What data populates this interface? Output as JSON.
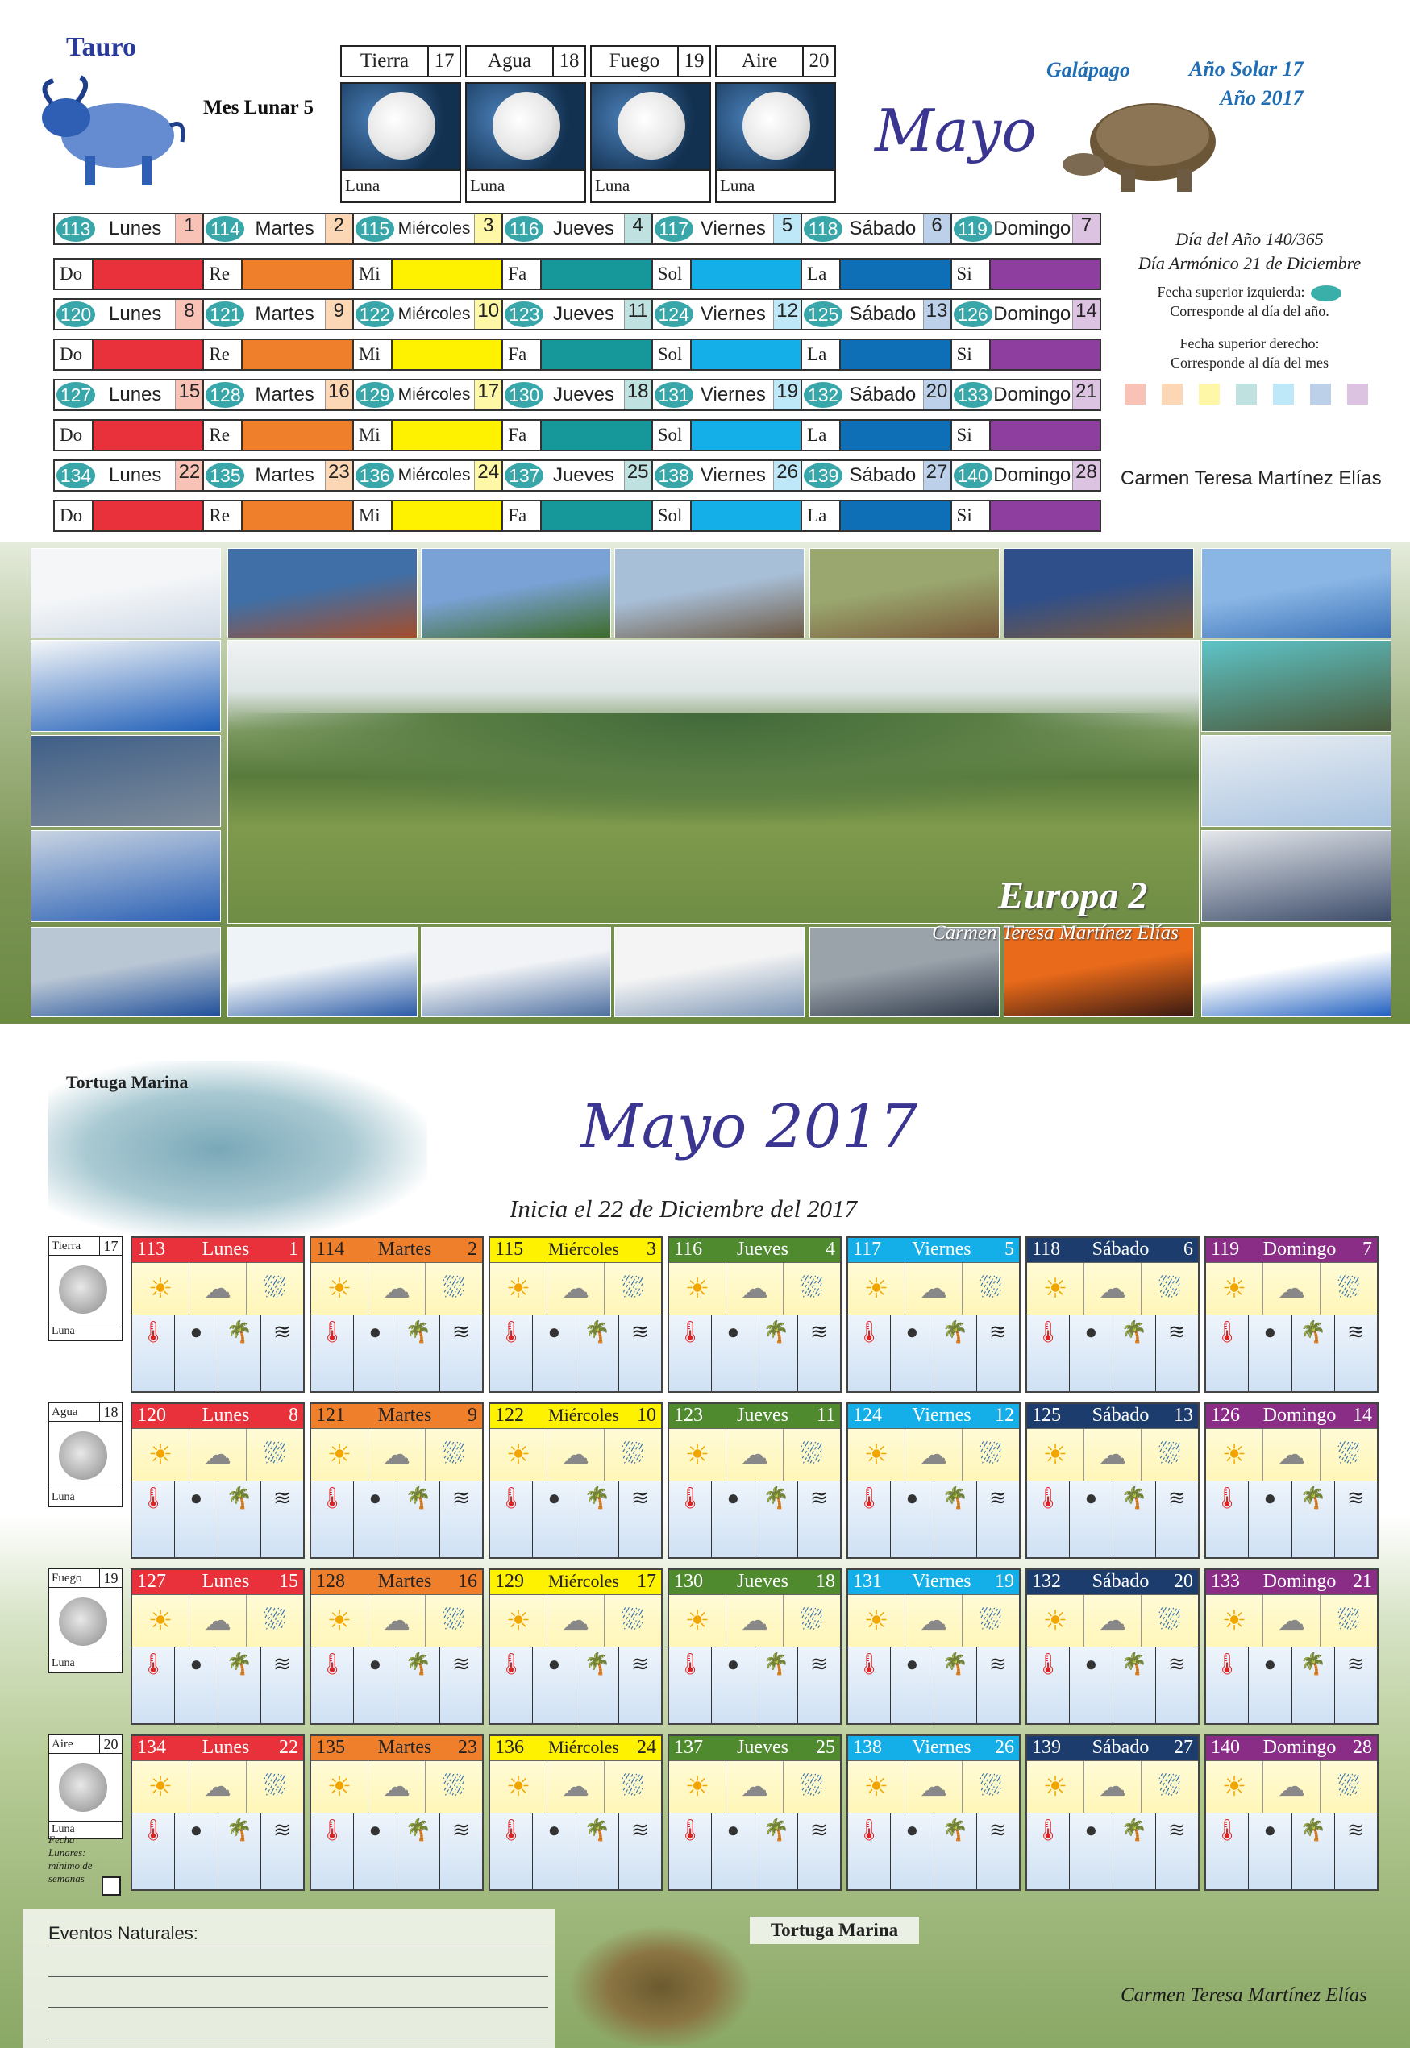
{
  "header": {
    "sign": "Tauro",
    "mes_lunar": "Mes Lunar 5",
    "month_script": "Mayo",
    "galapago": "Galápago",
    "ano_solar": "Año Solar   17",
    "ano": "Año 2017",
    "elements": [
      {
        "name": "Tierra",
        "num": "17",
        "luna": "Luna"
      },
      {
        "name": "Agua",
        "num": "18",
        "luna": "Luna"
      },
      {
        "name": "Fuego",
        "num": "19",
        "luna": "Luna"
      },
      {
        "name": "Aire",
        "num": "20",
        "luna": "Luna"
      }
    ]
  },
  "colors": {
    "lunes": "#e8313a",
    "martes": "#f07f2c",
    "miercoles": "#fff200",
    "jueves": "#16989a",
    "viernes": "#14aee8",
    "sabado": "#0f6fb6",
    "domingo": "#8e3e9e",
    "jueves_card": "#4f8a2f",
    "sabado_card": "#1b3c6c",
    "domingo_card": "#8a2d86"
  },
  "week_notes": [
    "Do",
    "Re",
    "Mi",
    "Fa",
    "Sol",
    "La",
    "Si"
  ],
  "weeks": [
    {
      "days": [
        {
          "year": "113",
          "name": "Lunes",
          "num": "1"
        },
        {
          "year": "114",
          "name": "Martes",
          "num": "2"
        },
        {
          "year": "115",
          "name": "Miércoles",
          "num": "3"
        },
        {
          "year": "116",
          "name": "Jueves",
          "num": "4"
        },
        {
          "year": "117",
          "name": "Viernes",
          "num": "5"
        },
        {
          "year": "118",
          "name": "Sábado",
          "num": "6"
        },
        {
          "year": "119",
          "name": "Domingo",
          "num": "7"
        }
      ]
    },
    {
      "days": [
        {
          "year": "120",
          "name": "Lunes",
          "num": "8"
        },
        {
          "year": "121",
          "name": "Martes",
          "num": "9"
        },
        {
          "year": "122",
          "name": "Miércoles",
          "num": "10"
        },
        {
          "year": "123",
          "name": "Jueves",
          "num": "11"
        },
        {
          "year": "124",
          "name": "Viernes",
          "num": "12"
        },
        {
          "year": "125",
          "name": "Sábado",
          "num": "13"
        },
        {
          "year": "126",
          "name": "Domingo",
          "num": "14"
        }
      ]
    },
    {
      "days": [
        {
          "year": "127",
          "name": "Lunes",
          "num": "15"
        },
        {
          "year": "128",
          "name": "Martes",
          "num": "16"
        },
        {
          "year": "129",
          "name": "Miércoles",
          "num": "17"
        },
        {
          "year": "130",
          "name": "Jueves",
          "num": "18"
        },
        {
          "year": "131",
          "name": "Viernes",
          "num": "19"
        },
        {
          "year": "132",
          "name": "Sábado",
          "num": "20"
        },
        {
          "year": "133",
          "name": "Domingo",
          "num": "21"
        }
      ]
    },
    {
      "days": [
        {
          "year": "134",
          "name": "Lunes",
          "num": "22"
        },
        {
          "year": "135",
          "name": "Martes",
          "num": "23"
        },
        {
          "year": "136",
          "name": "Miércoles",
          "num": "24"
        },
        {
          "year": "137",
          "name": "Jueves",
          "num": "25"
        },
        {
          "year": "138",
          "name": "Viernes",
          "num": "26"
        },
        {
          "year": "139",
          "name": "Sábado",
          "num": "27"
        },
        {
          "year": "140",
          "name": "Domingo",
          "num": "28"
        }
      ]
    }
  ],
  "side_info": {
    "dia_ano": "Día del Año 140/365",
    "dia_armonico": "Día Armónico 21 de Diciembre",
    "fecha_izq": "Fecha superior izquierda:",
    "fecha_izq2": "Corresponde al día del año.",
    "fecha_der": "Fecha superior derecho:",
    "fecha_der2": "Corresponde al día del mes",
    "author": "Carmen Teresa Martínez Elías"
  },
  "band": {
    "title": "Europa 2",
    "author": "Carmen Teresa Martínez Elías"
  },
  "bottom": {
    "turtle_top": "Tortuga Marina",
    "month_title": "Mayo 2017",
    "inicia": "Inicia el 22 de Diciembre del 2017",
    "fecha_note": "Fecha Lunares: mínimo de semanas",
    "eventos": "Eventos Naturales:",
    "turtle_bottom": "Tortuga Marina",
    "author": "Carmen Teresa Martínez Elías"
  },
  "icons": {
    "weather": [
      "sun-icon",
      "cloud-icon",
      "rain-icon"
    ],
    "extra": [
      "thermometer-sun-icon",
      "moon-icon",
      "palm-tree-icon",
      "wind-icon"
    ]
  }
}
